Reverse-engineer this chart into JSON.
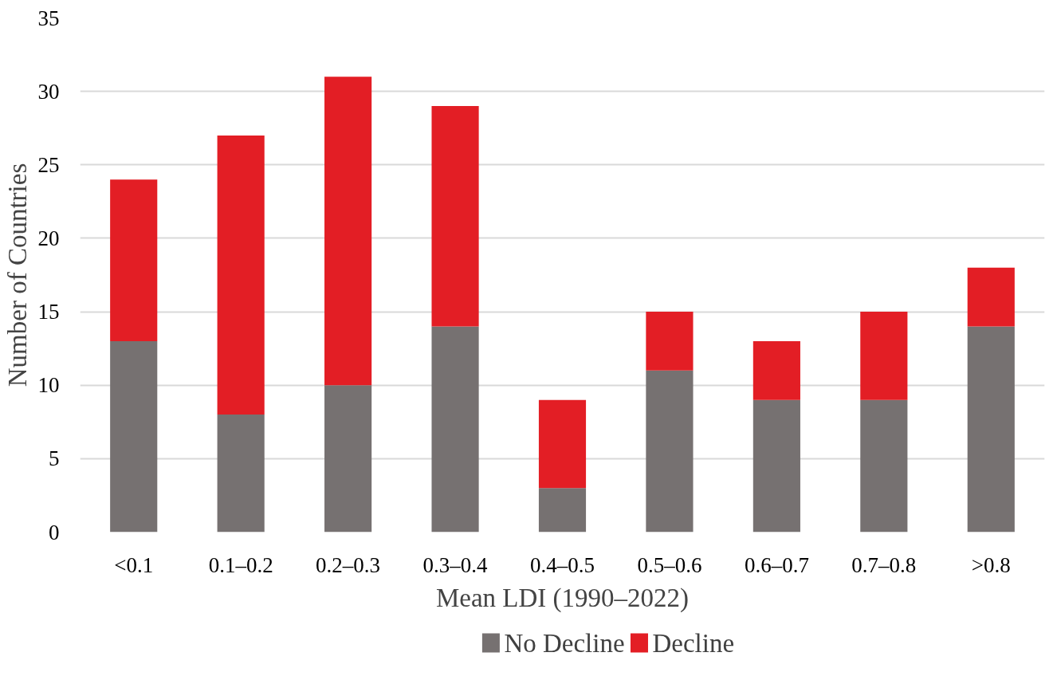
{
  "chart_data": {
    "type": "bar",
    "stacked": true,
    "xlabel": "Mean LDI (1990–2022)",
    "ylabel": "Number of Countries",
    "categories": [
      "<0.1",
      "0.1–0.2",
      "0.2–0.3",
      "0.3–0.4",
      "0.4–0.5",
      "0.5–0.6",
      "0.6–0.7",
      "0.7–0.8",
      ">0.8"
    ],
    "series": [
      {
        "name": "No Decline",
        "color": "#767171",
        "values": [
          13,
          8,
          10,
          14,
          3,
          11,
          9,
          9,
          14
        ]
      },
      {
        "name": "Decline",
        "color": "#e31e25",
        "values": [
          11,
          19,
          21,
          15,
          6,
          4,
          4,
          6,
          4
        ]
      }
    ],
    "ylim": [
      0,
      35
    ],
    "yticks": [
      0,
      5,
      10,
      15,
      20,
      25,
      30,
      35
    ],
    "grid": "y",
    "legend": "bottom"
  }
}
